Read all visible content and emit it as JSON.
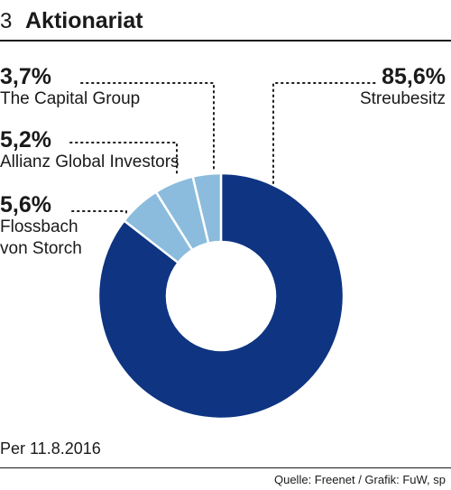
{
  "header": {
    "number": "3",
    "title": "Aktionariat"
  },
  "footer": {
    "date": "Per 11.8.2016",
    "source": "Quelle: Freenet / Grafik: FuW, sp"
  },
  "colors": {
    "dark_blue": "#0e3482",
    "light_blue": "#8bbcdd",
    "text": "#1a1a1a"
  },
  "chart_data": {
    "type": "pie",
    "variant": "donut",
    "title": "Aktionariat",
    "slices": [
      {
        "label": "Streubesitz",
        "value": 85.6,
        "display": "85,6%",
        "color": "#0e3482"
      },
      {
        "label": "Flossbach von Storch",
        "value": 5.6,
        "display": "5,6%",
        "color": "#8bbcdd"
      },
      {
        "label": "Allianz Global Investors",
        "value": 5.2,
        "display": "5,2%",
        "color": "#8bbcdd"
      },
      {
        "label": "The Capital Group",
        "value": 3.7,
        "display": "3,7%",
        "color": "#8bbcdd"
      }
    ]
  }
}
